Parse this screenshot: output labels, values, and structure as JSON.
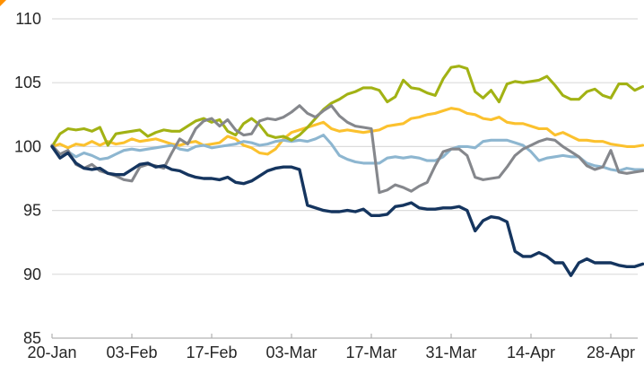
{
  "corner_marker": {
    "color": "#ff9000"
  },
  "axis_style": {
    "grid_color": "#dcdcdc",
    "axis_line_color": "#c0c0c0",
    "tick_color": "#b0b0b0",
    "label_color": "#262626"
  },
  "chart_data": {
    "type": "line",
    "title": "",
    "xlabel": "",
    "ylabel": "",
    "ylim": [
      85,
      110
    ],
    "y_ticks": [
      85,
      90,
      95,
      100,
      105,
      110
    ],
    "x_tick_labels": [
      "20-Jan",
      "03-Feb",
      "17-Feb",
      "03-Mar",
      "17-Mar",
      "31-Mar",
      "14-Apr",
      "28-Apr"
    ],
    "x_tick_indices": [
      0,
      10,
      20,
      30,
      40,
      50,
      60,
      70
    ],
    "grid": "horizontal",
    "legend_position": "none",
    "series": [
      {
        "name": "gold",
        "color": "#fbc12e",
        "values": [
          100.0,
          100.2,
          99.9,
          100.2,
          100.1,
          100.4,
          100.1,
          100.4,
          100.2,
          100.3,
          100.6,
          100.4,
          100.5,
          100.6,
          100.4,
          100.2,
          100.1,
          100.3,
          100.4,
          100.1,
          100.2,
          100.3,
          100.8,
          100.6,
          100.1,
          99.9,
          99.5,
          99.4,
          99.8,
          100.6,
          101.1,
          101.3,
          101.5,
          101.7,
          101.9,
          101.4,
          101.2,
          101.3,
          101.2,
          101.1,
          101.2,
          101.3,
          101.6,
          101.7,
          101.8,
          102.2,
          102.3,
          102.5,
          102.6,
          102.8,
          103.0,
          102.9,
          102.6,
          102.5,
          102.2,
          102.1,
          102.3,
          101.9,
          101.8,
          101.8,
          101.6,
          101.4,
          101.4,
          100.9,
          101.1,
          100.8,
          100.5,
          100.5,
          100.4,
          100.4,
          100.2,
          100.1,
          100.0,
          100.0,
          100.1
        ]
      },
      {
        "name": "light-blue",
        "color": "#8db6d0",
        "values": [
          100.0,
          99.4,
          99.6,
          99.2,
          99.5,
          99.3,
          99.0,
          99.1,
          99.4,
          99.7,
          99.8,
          99.7,
          99.8,
          99.9,
          100.0,
          100.1,
          99.8,
          99.7,
          100.0,
          100.1,
          99.9,
          100.0,
          100.1,
          100.2,
          100.4,
          100.3,
          100.1,
          100.2,
          100.4,
          100.5,
          100.4,
          100.5,
          100.4,
          100.6,
          100.9,
          100.2,
          99.3,
          99.0,
          98.8,
          98.7,
          98.7,
          98.7,
          99.1,
          99.2,
          99.1,
          99.2,
          99.1,
          98.9,
          98.9,
          99.2,
          99.8,
          100.0,
          100.0,
          99.9,
          100.4,
          100.5,
          100.5,
          100.5,
          100.3,
          100.1,
          99.6,
          98.9,
          99.1,
          99.2,
          99.3,
          99.2,
          99.2,
          98.7,
          98.5,
          98.4,
          98.2,
          98.1,
          98.3,
          98.2,
          98.2
        ]
      },
      {
        "name": "olive-green",
        "color": "#a2b214",
        "values": [
          100.0,
          101.0,
          101.4,
          101.3,
          101.4,
          101.2,
          101.5,
          100.1,
          101.0,
          101.1,
          101.2,
          101.3,
          100.8,
          101.1,
          101.3,
          101.2,
          101.2,
          101.6,
          102.0,
          102.2,
          101.9,
          102.1,
          101.2,
          100.9,
          101.8,
          102.2,
          101.7,
          100.9,
          100.7,
          100.8,
          100.5,
          100.9,
          101.5,
          102.2,
          102.9,
          103.4,
          103.7,
          104.1,
          104.3,
          104.6,
          104.6,
          104.4,
          103.5,
          103.9,
          105.2,
          104.6,
          104.5,
          104.2,
          104.0,
          105.3,
          106.2,
          106.3,
          106.1,
          104.3,
          103.8,
          104.4,
          103.5,
          104.9,
          105.1,
          105.0,
          105.1,
          105.2,
          105.5,
          104.8,
          104.0,
          103.7,
          103.7,
          104.3,
          104.5,
          104.0,
          103.8,
          104.9,
          104.9,
          104.4,
          104.7
        ]
      },
      {
        "name": "gray",
        "color": "#85878c",
        "values": [
          100.1,
          99.4,
          99.7,
          98.6,
          98.3,
          98.6,
          98.1,
          97.9,
          97.7,
          97.4,
          97.3,
          98.4,
          98.6,
          98.5,
          98.3,
          99.5,
          100.6,
          100.2,
          101.4,
          102.0,
          102.2,
          101.6,
          102.1,
          101.3,
          100.9,
          101.0,
          102.0,
          102.2,
          102.1,
          102.3,
          102.7,
          103.2,
          102.6,
          102.3,
          102.8,
          103.2,
          102.4,
          101.9,
          101.6,
          101.5,
          101.4,
          96.4,
          96.6,
          97.0,
          96.8,
          96.5,
          96.9,
          97.2,
          98.5,
          99.6,
          99.8,
          99.8,
          99.3,
          97.6,
          97.4,
          97.5,
          97.6,
          98.4,
          99.3,
          99.8,
          100.1,
          100.4,
          100.6,
          100.5,
          100.0,
          99.6,
          99.2,
          98.5,
          98.2,
          98.4,
          99.7,
          98.0,
          97.9,
          98.0,
          98.1
        ]
      },
      {
        "name": "navy",
        "color": "#15355f",
        "values": [
          100.0,
          99.1,
          99.5,
          98.7,
          98.3,
          98.2,
          98.3,
          97.9,
          97.8,
          97.8,
          98.2,
          98.6,
          98.7,
          98.4,
          98.5,
          98.2,
          98.1,
          97.8,
          97.6,
          97.5,
          97.5,
          97.4,
          97.6,
          97.2,
          97.1,
          97.3,
          97.7,
          98.1,
          98.3,
          98.4,
          98.4,
          98.2,
          95.4,
          95.2,
          95.0,
          94.9,
          94.9,
          95.0,
          94.9,
          95.1,
          94.6,
          94.6,
          94.7,
          95.3,
          95.4,
          95.6,
          95.2,
          95.1,
          95.1,
          95.2,
          95.2,
          95.3,
          95.0,
          93.4,
          94.2,
          94.5,
          94.4,
          94.1,
          91.8,
          91.4,
          91.4,
          91.7,
          91.4,
          90.9,
          90.9,
          89.9,
          90.9,
          91.2,
          90.9,
          90.9,
          90.9,
          90.7,
          90.6,
          90.6,
          90.8
        ]
      }
    ]
  }
}
